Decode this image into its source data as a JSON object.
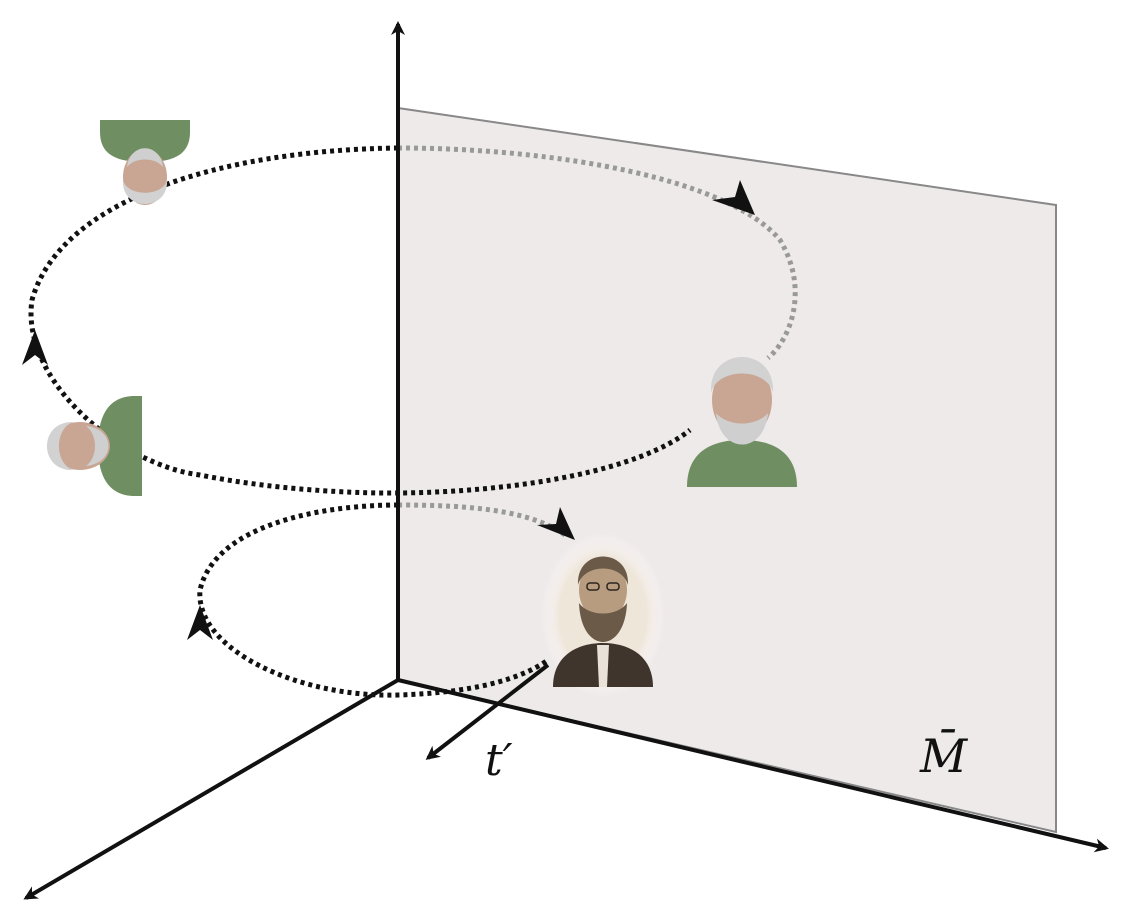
{
  "diagram": {
    "labels": {
      "time_axis": "t′",
      "manifold": "M̄"
    },
    "colors": {
      "plane_fill": "#efeaea",
      "plane_edge": "#888888",
      "axis": "#111111",
      "loop_front": "#111111",
      "loop_behind": "#999999",
      "uniform": "#6f8f62",
      "skin": "#c9a594",
      "hair": "#d2d2d2",
      "sepia": "#6b5a48"
    },
    "figures": [
      {
        "name": "portrait-upside-down",
        "description_icon": "bearded-man-uniform-icon"
      },
      {
        "name": "portrait-sideways",
        "description_icon": "bearded-man-uniform-icon"
      },
      {
        "name": "portrait-upright",
        "description_icon": "bearded-man-uniform-icon"
      },
      {
        "name": "portrait-sepia",
        "description_icon": "bearded-man-sepia-icon"
      }
    ]
  }
}
